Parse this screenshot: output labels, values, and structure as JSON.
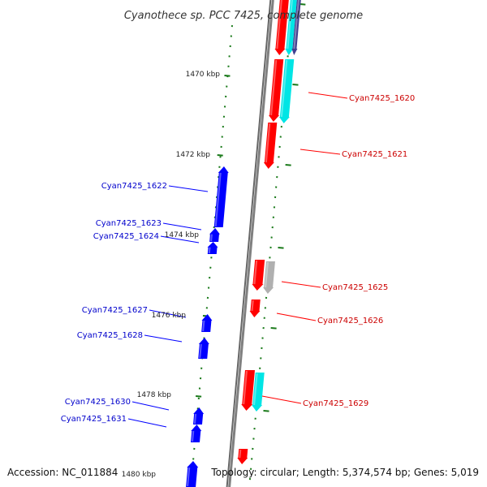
{
  "title": "Cyanothece sp. PCC 7425, complete genome",
  "accession": "Accession: NC_011884",
  "topology": "Topology: circular; Length: 5,374,574 bp; Genes: 5,019",
  "colors": {
    "forward": "#ff0000",
    "reverse": "#0000ff",
    "cyan": "#00e5e5",
    "gray": "#b0b0b0",
    "navy": "#404090",
    "tick": "#1a7a1a",
    "backbone": "#808080"
  },
  "kbp_labels": [
    "1470 kbp",
    "1472 kbp",
    "1474 kbp",
    "1476 kbp",
    "1478 kbp",
    "1480 kbp"
  ],
  "genes_forward": [
    {
      "name": "Cyan7425_1620"
    },
    {
      "name": "Cyan7425_1621"
    },
    {
      "name": "Cyan7425_1625"
    },
    {
      "name": "Cyan7425_1626"
    },
    {
      "name": "Cyan7425_1629"
    }
  ],
  "genes_reverse": [
    {
      "name": "Cyan7425_1622"
    },
    {
      "name": "Cyan7425_1623"
    },
    {
      "name": "Cyan7425_1624"
    },
    {
      "name": "Cyan7425_1627"
    },
    {
      "name": "Cyan7425_1628"
    },
    {
      "name": "Cyan7425_1630"
    },
    {
      "name": "Cyan7425_1631"
    }
  ]
}
